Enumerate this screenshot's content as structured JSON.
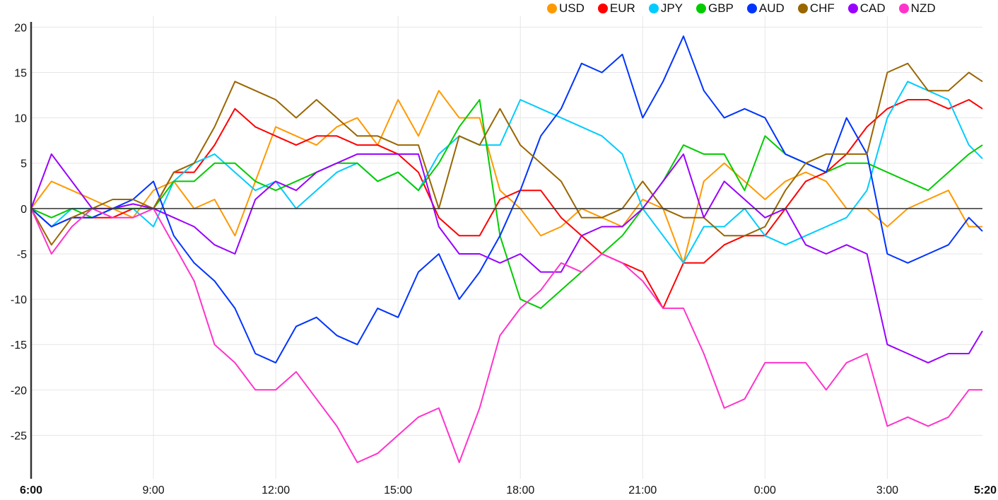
{
  "chart_data": {
    "type": "line",
    "title": "",
    "xlabel": "",
    "ylabel": "",
    "ylim": [
      -29.8,
      21.2
    ],
    "xlim": [
      0,
      23.333
    ],
    "grid": true,
    "legend_position": "top-right",
    "yticks": [
      -25,
      -20,
      -15,
      -10,
      -5,
      0,
      5,
      10,
      15,
      20
    ],
    "xticks": [
      {
        "value": 0,
        "label": "6:00",
        "bold": true
      },
      {
        "value": 3,
        "label": "9:00",
        "bold": false
      },
      {
        "value": 6,
        "label": "12:00",
        "bold": false
      },
      {
        "value": 9,
        "label": "15:00",
        "bold": false
      },
      {
        "value": 12,
        "label": "18:00",
        "bold": false
      },
      {
        "value": 15,
        "label": "21:00",
        "bold": false
      },
      {
        "value": 18,
        "label": "0:00",
        "bold": false
      },
      {
        "value": 21,
        "label": "3:00",
        "bold": false
      },
      {
        "value": 23.333,
        "label": "5:20",
        "bold": true
      }
    ],
    "x_hours_from_start": [
      0,
      0.5,
      1,
      1.5,
      2,
      2.5,
      3,
      3.5,
      4,
      4.5,
      5,
      5.5,
      6,
      6.5,
      7,
      7.5,
      8,
      8.5,
      9,
      9.5,
      10,
      10.5,
      11,
      11.5,
      12,
      12.5,
      13,
      13.5,
      14,
      14.5,
      15,
      15.5,
      16,
      16.5,
      17,
      17.5,
      18,
      18.5,
      19,
      19.5,
      20,
      20.5,
      21,
      21.5,
      22,
      22.5,
      23,
      23.333
    ],
    "series": [
      {
        "name": "USD",
        "color": "#ff9900",
        "values": [
          0,
          3,
          2,
          1,
          0,
          -1,
          2,
          3,
          0,
          1,
          -3,
          3,
          9,
          8,
          7,
          9,
          10,
          7,
          12,
          8,
          13,
          10,
          10,
          2,
          0,
          -3,
          -2,
          0,
          -1,
          -2,
          1,
          0,
          -6,
          3,
          5,
          3,
          1,
          3,
          4,
          3,
          0,
          0,
          -2,
          0,
          1,
          2,
          -2,
          -2
        ]
      },
      {
        "name": "EUR",
        "color": "#ff0000",
        "values": [
          0,
          -2,
          -1,
          -1,
          -1,
          0,
          0,
          4,
          4,
          7,
          11,
          9,
          8,
          7,
          8,
          8,
          7,
          7,
          6,
          4,
          -1,
          -3,
          -3,
          1,
          2,
          2,
          -1,
          -3,
          -5,
          -6,
          -7,
          -11,
          -6,
          -6,
          -4,
          -3,
          -3,
          0,
          3,
          4,
          6,
          9,
          11,
          12,
          12,
          11,
          12,
          11
        ]
      },
      {
        "name": "JPY",
        "color": "#00ccff",
        "values": [
          0,
          -2,
          0,
          0,
          0,
          0,
          -2,
          3,
          5,
          6,
          4,
          2,
          3,
          0,
          2,
          4,
          5,
          3,
          4,
          2,
          6,
          8,
          7,
          7,
          12,
          11,
          10,
          9,
          8,
          6,
          0,
          -3,
          -6,
          -2,
          -2,
          0,
          -3,
          -4,
          -3,
          -2,
          -1,
          2,
          10,
          14,
          13,
          12,
          7,
          5.5
        ]
      },
      {
        "name": "GBP",
        "color": "#00cc00",
        "values": [
          0,
          -1,
          0,
          -1,
          0,
          0,
          0,
          3,
          3,
          5,
          5,
          3,
          2,
          3,
          4,
          5,
          5,
          3,
          4,
          2,
          5,
          9,
          12,
          -3,
          -10,
          -11,
          -9,
          -7,
          -5,
          -3,
          0,
          3,
          7,
          6,
          6,
          2,
          8,
          6,
          5,
          4,
          5,
          5,
          4,
          3,
          2,
          4,
          6,
          7
        ]
      },
      {
        "name": "AUD",
        "color": "#0033ff",
        "values": [
          0,
          -2,
          -1,
          -1,
          0,
          1,
          3,
          -3,
          -6,
          -8,
          -11,
          -16,
          -17,
          -13,
          -12,
          -14,
          -15,
          -11,
          -12,
          -7,
          -5,
          -10,
          -7,
          -3,
          2,
          8,
          11,
          16,
          15,
          17,
          10,
          14,
          19,
          13,
          10,
          11,
          10,
          6,
          5,
          4,
          10,
          6,
          -5,
          -6,
          -5,
          -4,
          -1,
          -2.5
        ]
      },
      {
        "name": "CHF",
        "color": "#996600",
        "values": [
          0,
          -4,
          -1,
          0,
          1,
          1,
          0,
          4,
          5,
          9,
          14,
          13,
          12,
          10,
          12,
          10,
          8,
          8,
          7,
          7,
          0,
          8,
          7,
          11,
          7,
          5,
          3,
          -1,
          -1,
          0,
          3,
          0,
          -1,
          -1,
          -3,
          -3,
          -2,
          2,
          5,
          6,
          6,
          6,
          15,
          16,
          13,
          13,
          15,
          14
        ]
      },
      {
        "name": "CAD",
        "color": "#9900ff",
        "values": [
          0,
          6,
          3,
          0,
          0,
          0.5,
          0,
          -1,
          -2,
          -4,
          -5,
          1,
          3,
          2,
          4,
          5,
          6,
          6,
          6,
          6,
          -2,
          -5,
          -5,
          -6,
          -5,
          -7,
          -7,
          -3,
          -2,
          -2,
          0,
          3,
          6,
          -1,
          3,
          1,
          -1,
          0,
          -4,
          -5,
          -4,
          -5,
          -15,
          -16,
          -17,
          -16,
          -16,
          -13.5
        ]
      },
      {
        "name": "NZD",
        "color": "#ff33cc",
        "values": [
          0,
          -5,
          -2,
          0,
          -1,
          -1,
          0,
          -4,
          -8,
          -15,
          -17,
          -20,
          -20,
          -18,
          -21,
          -24,
          -28,
          -27,
          -25,
          -23,
          -22,
          -28,
          -22,
          -14,
          -11,
          -9,
          -6,
          -7,
          -5,
          -6,
          -8,
          -11,
          -11,
          -16,
          -22,
          -21,
          -17,
          -17,
          -17,
          -20,
          -17,
          -16,
          -24,
          -23,
          -24,
          -23,
          -20,
          -20
        ]
      }
    ]
  }
}
